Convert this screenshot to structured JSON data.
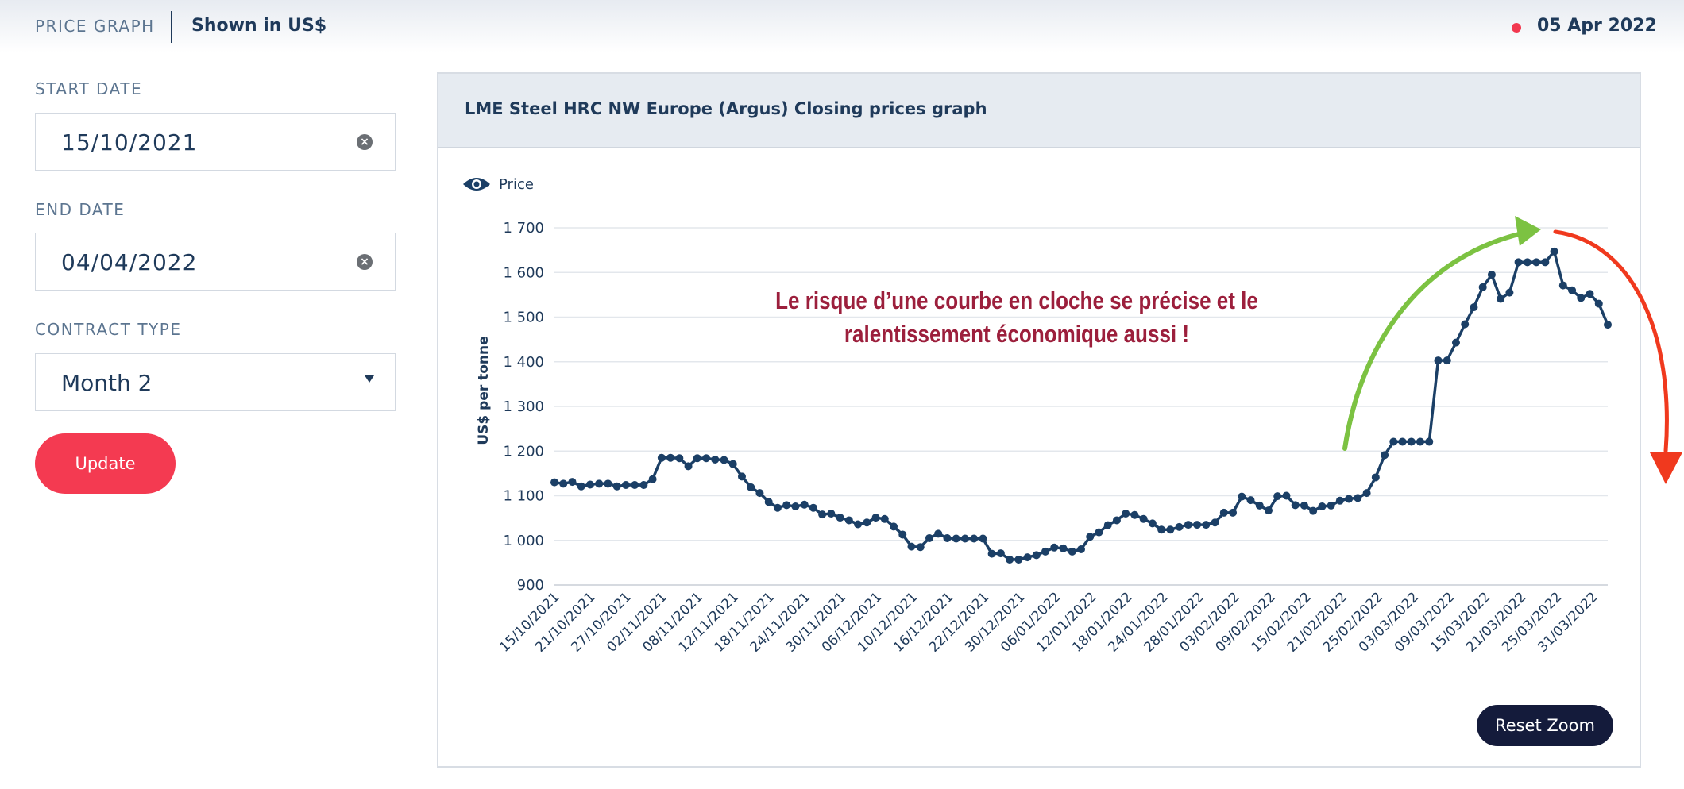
{
  "header": {
    "section_label": "PRICE GRAPH",
    "currency_note": "Shown in US$",
    "date": "05 Apr 2022"
  },
  "form": {
    "start_label": "START DATE",
    "start_value": "15/10/2021",
    "end_label": "END DATE",
    "end_value": "04/04/2022",
    "contract_label": "CONTRACT TYPE",
    "contract_value": "Month 2",
    "update_label": "Update"
  },
  "chart": {
    "title": "LME Steel HRC NW Europe (Argus) Closing prices graph",
    "legend_label": "Price",
    "reset_zoom_label": "Reset Zoom",
    "annotation_line1": "Le risque d’une courbe en cloche se précise et le",
    "annotation_line2": "ralentissement économique aussi !"
  },
  "colors": {
    "series": "#1b3f66",
    "accent": "#f43a51",
    "annotation": "#9c1f3c",
    "green_arrow": "#7cc242",
    "red_arrow": "#f0391e"
  },
  "chart_data": {
    "type": "line",
    "ylabel": "US$ per tonne",
    "ylim": [
      900,
      1700
    ],
    "yticks": [
      "1 700",
      "1 600",
      "1 500",
      "1 400",
      "1 300",
      "1 200",
      "1 100",
      "1 000",
      "900"
    ],
    "ytick_values": [
      1700,
      1600,
      1500,
      1400,
      1300,
      1200,
      1100,
      1000,
      900
    ],
    "xtick_labels": [
      "15/10/2021",
      "21/10/2021",
      "27/10/2021",
      "02/11/2021",
      "08/11/2021",
      "12/11/2021",
      "18/11/2021",
      "24/11/2021",
      "30/11/2021",
      "06/12/2021",
      "10/12/2021",
      "16/12/2021",
      "22/12/2021",
      "30/12/2021",
      "06/01/2022",
      "12/01/2022",
      "18/01/2022",
      "24/01/2022",
      "28/01/2022",
      "03/02/2022",
      "09/02/2022",
      "15/02/2022",
      "21/02/2022",
      "25/02/2022",
      "03/03/2022",
      "09/03/2022",
      "15/03/2022",
      "21/03/2022",
      "25/03/2022",
      "31/03/2022"
    ],
    "grid": true,
    "legend": "top-left",
    "series": [
      {
        "name": "Price",
        "values": [
          1130,
          1127,
          1131,
          1121,
          1125,
          1127,
          1127,
          1121,
          1124,
          1124,
          1124,
          1137,
          1185,
          1185,
          1184,
          1166,
          1184,
          1184,
          1181,
          1180,
          1171,
          1143,
          1119,
          1106,
          1086,
          1073,
          1079,
          1076,
          1080,
          1073,
          1058,
          1060,
          1051,
          1045,
          1036,
          1040,
          1051,
          1048,
          1031,
          1013,
          986,
          985,
          1005,
          1015,
          1005,
          1004,
          1004,
          1004,
          1004,
          970,
          971,
          957,
          957,
          962,
          967,
          975,
          984,
          982,
          975,
          980,
          1008,
          1018,
          1034,
          1045,
          1060,
          1057,
          1048,
          1038,
          1024,
          1024,
          1030,
          1035,
          1035,
          1035,
          1040,
          1062,
          1062,
          1098,
          1090,
          1078,
          1067,
          1099,
          1100,
          1079,
          1078,
          1066,
          1076,
          1078,
          1089,
          1093,
          1095,
          1106,
          1141,
          1191,
          1221,
          1221,
          1221,
          1221,
          1221,
          1403,
          1403,
          1443,
          1484,
          1522,
          1567,
          1595,
          1541,
          1555,
          1623,
          1623,
          1623,
          1623,
          1647,
          1571,
          1560,
          1543,
          1552,
          1530,
          1483
        ]
      }
    ]
  }
}
